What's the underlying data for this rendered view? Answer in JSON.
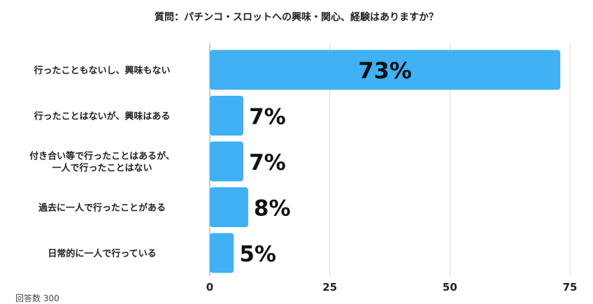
{
  "chart_data": {
    "type": "bar",
    "orientation": "horizontal",
    "title": "質問：パチンコ・スロットへの興味・関心、経験はありますか？",
    "categories": [
      "行ったこともないし、興味もない",
      "行ったことはないが、興味はある",
      "付き合い等で行ったことはあるが、\n一人で行ったことはない",
      "過去に一人で行ったことがある",
      "日常的に一人で行っている"
    ],
    "values": [
      73,
      7,
      7,
      8,
      5
    ],
    "data_labels": [
      "73%",
      "7%",
      "7%",
      "8%",
      "5%"
    ],
    "xlim": [
      0,
      75
    ],
    "xticks": [
      0,
      25,
      50,
      75
    ],
    "grid": true,
    "bar_color": "#3fb1f4"
  },
  "footnote": "回答数 300"
}
